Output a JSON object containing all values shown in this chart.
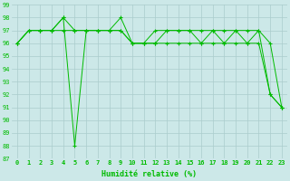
{
  "xlabel": "Humidité relative (%)",
  "xlim_min": -0.5,
  "xlim_max": 23.5,
  "ylim_min": 87,
  "ylim_max": 99,
  "yticks": [
    87,
    88,
    89,
    90,
    91,
    92,
    93,
    94,
    95,
    96,
    97,
    98,
    99
  ],
  "xticks": [
    0,
    1,
    2,
    3,
    4,
    5,
    6,
    7,
    8,
    9,
    10,
    11,
    12,
    13,
    14,
    15,
    16,
    17,
    18,
    19,
    20,
    21,
    22,
    23
  ],
  "bg_color": "#cce8e8",
  "line_color": "#00bb00",
  "grid_color": "#aacccc",
  "line1_x": [
    0,
    1,
    2,
    3,
    4,
    5,
    6,
    7,
    8,
    9,
    10,
    11,
    12,
    13,
    14,
    15,
    16,
    17,
    18,
    19,
    20,
    21,
    22,
    23
  ],
  "line1_y": [
    96,
    97,
    97,
    97,
    98,
    88,
    97,
    97,
    97,
    98,
    96,
    96,
    97,
    97,
    97,
    97,
    96,
    97,
    96,
    97,
    96,
    97,
    92,
    91
  ],
  "line2_x": [
    0,
    1,
    2,
    3,
    4,
    5,
    6,
    7,
    8,
    9,
    10,
    11,
    12,
    13,
    14,
    15,
    16,
    17,
    18,
    19,
    20,
    21,
    22,
    23
  ],
  "line2_y": [
    96,
    97,
    97,
    97,
    98,
    97,
    97,
    97,
    97,
    97,
    96,
    96,
    96,
    97,
    97,
    97,
    97,
    97,
    97,
    97,
    97,
    97,
    96,
    91
  ],
  "line3_x": [
    0,
    1,
    2,
    3,
    4,
    5,
    6,
    7,
    8,
    9,
    10,
    11,
    12,
    13,
    14,
    15,
    16,
    17,
    18,
    19,
    20,
    21,
    22,
    23
  ],
  "line3_y": [
    96,
    97,
    97,
    97,
    97,
    97,
    97,
    97,
    97,
    97,
    96,
    96,
    96,
    96,
    96,
    96,
    96,
    96,
    96,
    96,
    96,
    96,
    92,
    91
  ],
  "marker_style": "+",
  "marker_size": 2.5,
  "linewidth": 0.7,
  "tick_fontsize": 5,
  "xlabel_fontsize": 6
}
